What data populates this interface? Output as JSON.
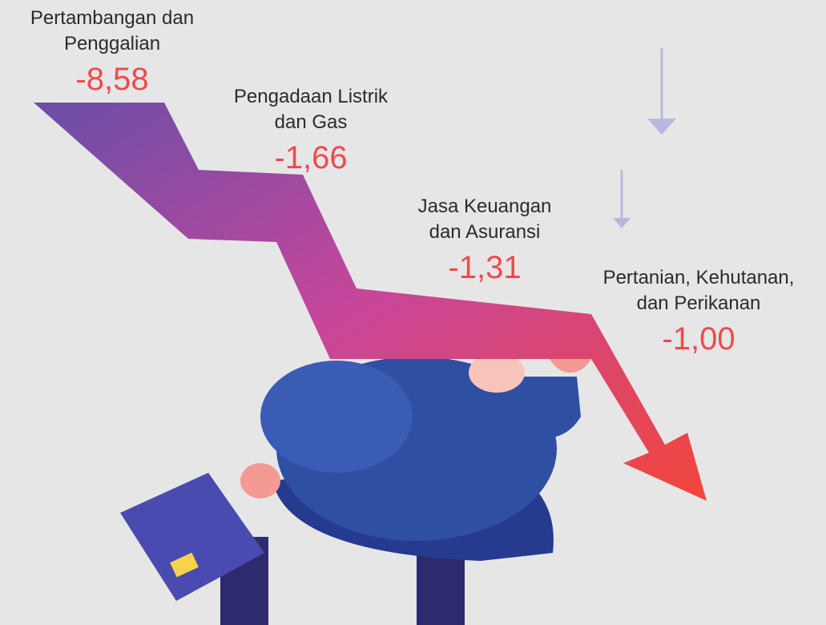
{
  "items": [
    {
      "label": [
        "Pertambangan dan",
        "Penggalian"
      ],
      "value": "-8,58"
    },
    {
      "label": [
        "Pengadaan Listrik",
        "dan Gas"
      ],
      "value": "-1,66"
    },
    {
      "label": [
        "Jasa Keuangan",
        "dan Asuransi"
      ],
      "value": "-1,31"
    },
    {
      "label": [
        "Pertanian, Kehutanan,",
        "dan Perikanan"
      ],
      "value": "-1,00"
    }
  ]
}
